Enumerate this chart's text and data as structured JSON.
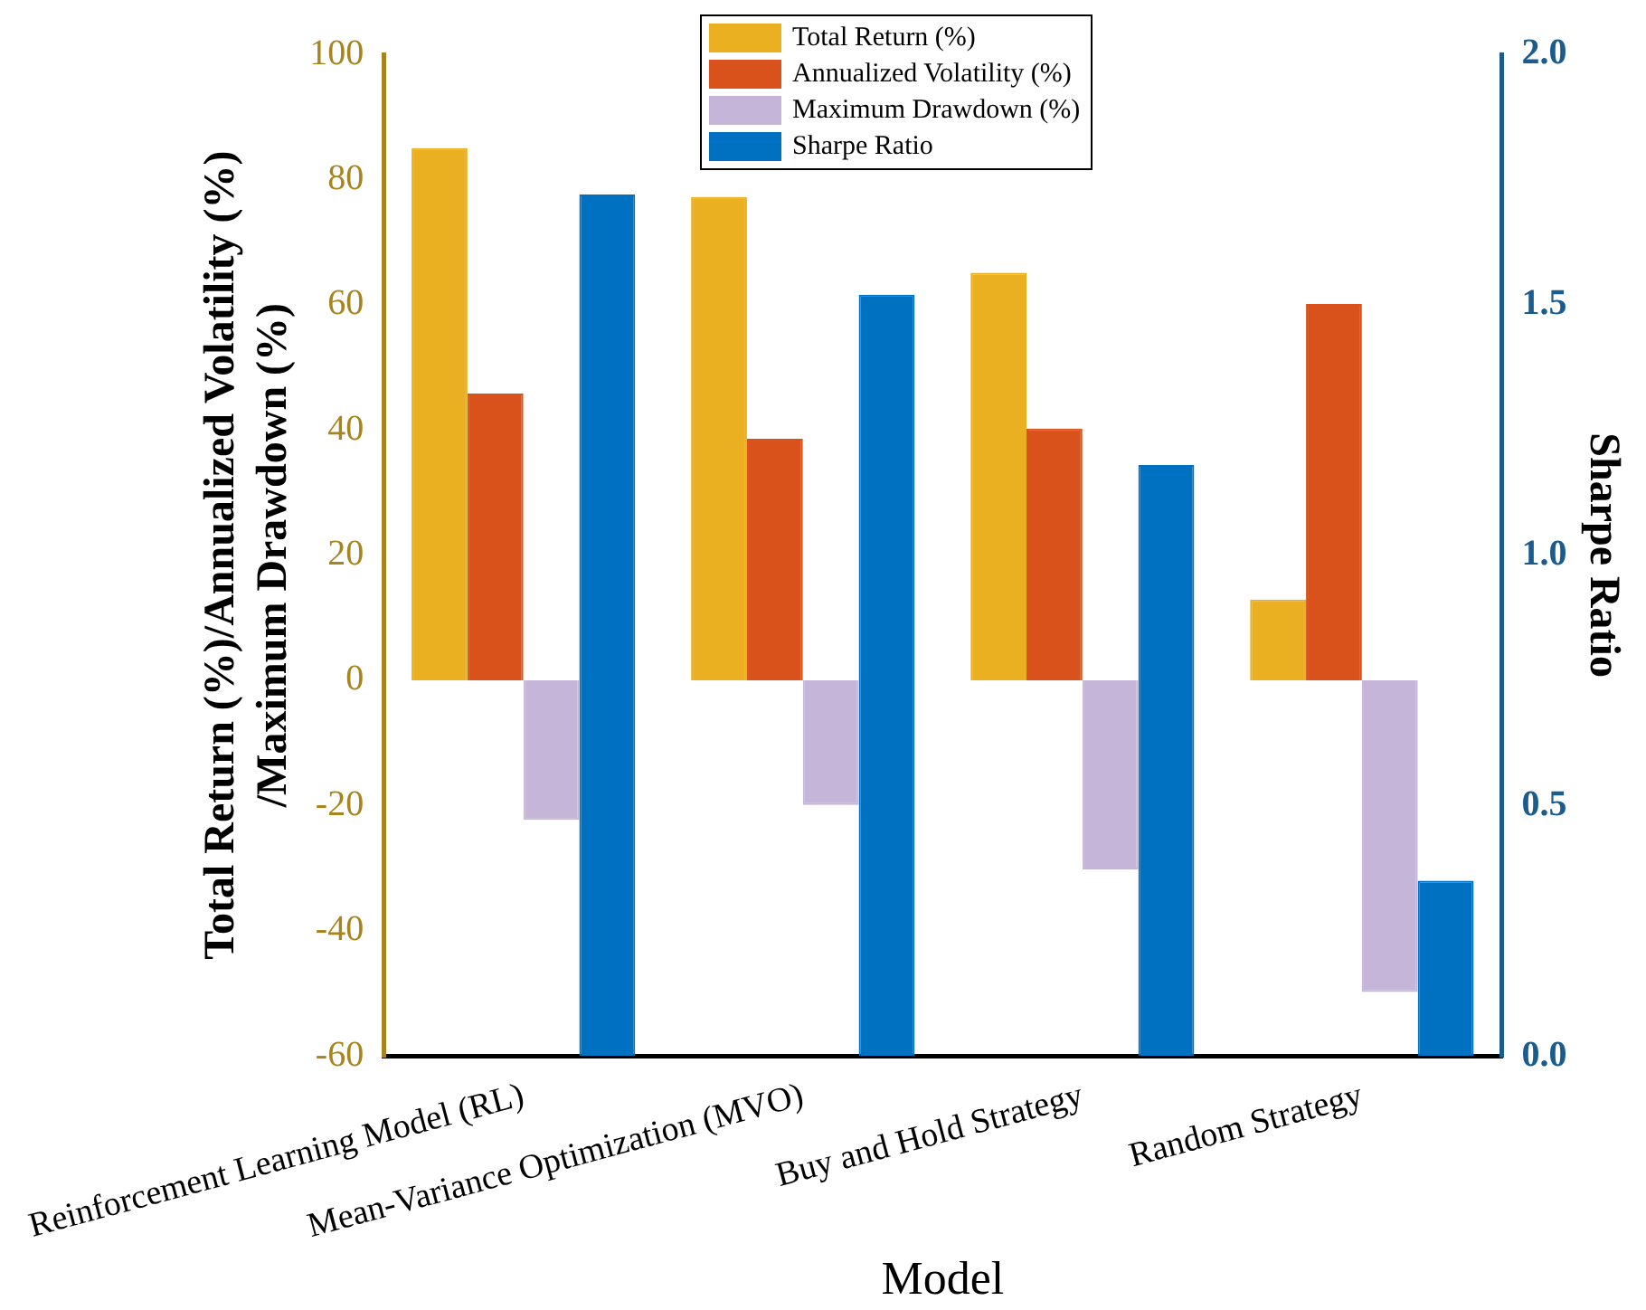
{
  "chart_data": {
    "type": "bar",
    "xlabel": "Model",
    "ylabel": "Total Return (%)/Annualized Volatility (%)\n/Maximum Drawdown (%)",
    "y2label": "Sharpe Ratio",
    "categories": [
      "Reinforcement Learning Model (RL)",
      "Mean-Variance Optimization (MVO)",
      "Buy and Hold Strategy",
      "Random Strategy"
    ],
    "series": [
      {
        "name": "Total Return (%)",
        "color": "#ebb021",
        "values": [
          85,
          77.2,
          65.1,
          12.9
        ]
      },
      {
        "name": "Annualized Volatility (%)",
        "color": "#d9521b",
        "values": [
          45.8,
          38.6,
          40.2,
          60.1
        ]
      },
      {
        "name": "Maximum Drawdown (%)",
        "color": "#c4b5d9",
        "values": [
          -22.3,
          -19.9,
          -30.2,
          -49.8
        ]
      },
      {
        "name": "Sharpe Ratio",
        "color": "#0070c0",
        "axis": "y2",
        "values": [
          1.72,
          1.52,
          1.18,
          0.35
        ]
      }
    ],
    "ylim": [
      -60,
      100
    ],
    "yticks": [
      -60,
      -40,
      -20,
      0,
      20,
      40,
      60,
      80,
      100
    ],
    "y2lim": [
      0,
      2
    ],
    "y2ticks": [
      {
        "value": 0,
        "label": "0.0"
      },
      {
        "value": 0.5,
        "label": "0.5"
      },
      {
        "value": 1,
        "label": "1.0"
      },
      {
        "value": 1.5,
        "label": "1.5"
      },
      {
        "value": 2,
        "label": "2.0"
      }
    ],
    "grid": false,
    "legend": "top"
  }
}
